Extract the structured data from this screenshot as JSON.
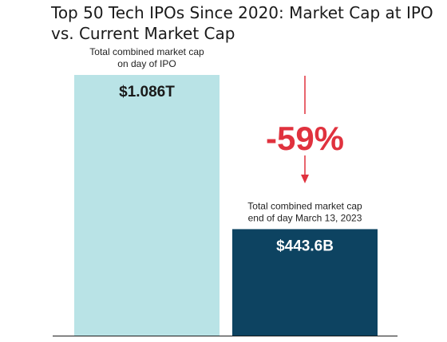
{
  "chart_data": {
    "type": "bar",
    "title": "Top 50 Tech IPOs Since 2020: Market Cap at IPO vs. Current Market Cap",
    "categories": [
      "Total combined market cap on day of IPO",
      "Total combined market cap end of day March 13, 2023"
    ],
    "category_lines": [
      [
        "Total combined market cap",
        "on day of IPO"
      ],
      [
        "Total combined market cap",
        "end of day March 13, 2023"
      ]
    ],
    "values": [
      1086,
      443.6
    ],
    "value_unit": "billion USD",
    "data_labels": [
      "$1.086T",
      "$443.6B"
    ],
    "colors": [
      "#b9e3e6",
      "#0d4361"
    ],
    "label_colors": [
      "#1a1a1a",
      "#ffffff"
    ],
    "ylim": [
      0,
      1086
    ],
    "grid": false,
    "annotation": {
      "text": "-59%",
      "color": "#e0323e"
    }
  }
}
